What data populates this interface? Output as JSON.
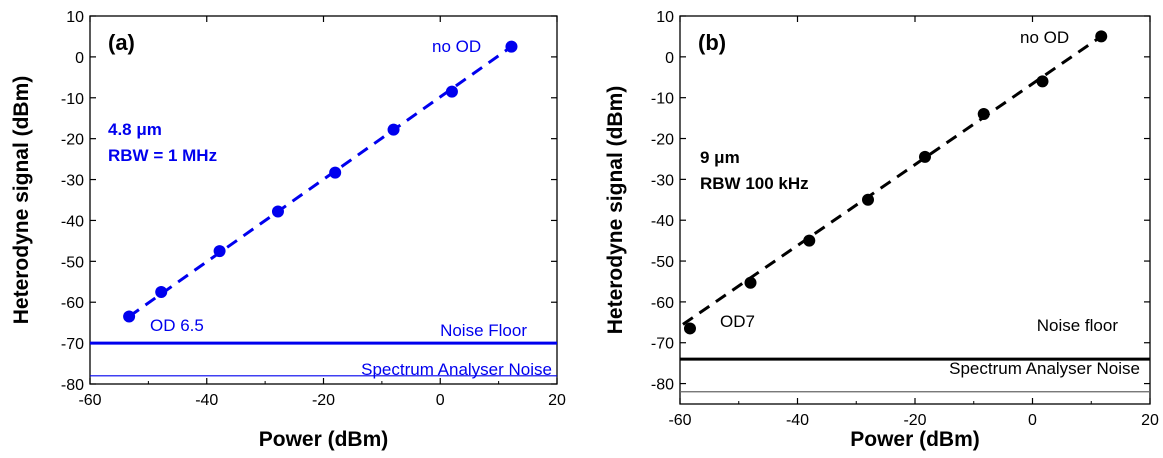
{
  "chart_data": [
    {
      "type": "scatter",
      "panel_label": "(a)",
      "color": "#0000ee",
      "xlabel": "Power (dBm)",
      "ylabel": "Heterodyne signal (dBm)",
      "xlim": [
        -60,
        20
      ],
      "ylim": [
        -80,
        10
      ],
      "xticks": [
        -60,
        -40,
        -20,
        0,
        20
      ],
      "yticks": [
        10,
        0,
        -10,
        -20,
        -30,
        -40,
        -50,
        -60,
        -70,
        -80
      ],
      "series": [
        {
          "x": [
            -53.3,
            -47.8,
            -37.8,
            -27.8,
            -18,
            -8,
            2,
            12.2
          ],
          "y": [
            -63.5,
            -57.5,
            -47.5,
            -37.8,
            -28.3,
            -17.8,
            -8.5,
            2.5
          ]
        }
      ],
      "fit_line": {
        "x": [
          -53.3,
          12.2
        ],
        "y": [
          -63.5,
          2.5
        ]
      },
      "hlines": [
        {
          "y": -70,
          "label": "Noise Floor",
          "weight": "thick"
        },
        {
          "y": -78,
          "label": "Spectrum Analyser Noise",
          "weight": "thin"
        }
      ],
      "annotations": {
        "top": "no OD",
        "bottom": "OD 6.5",
        "line1": "4.8 μm",
        "line2": "RBW = 1 MHz"
      }
    },
    {
      "type": "scatter",
      "panel_label": "(b)",
      "color": "#000000",
      "xlabel": "Power (dBm)",
      "ylabel": "Heterodyne signal (dBm)",
      "xlim": [
        -60,
        20
      ],
      "ylim": [
        -85,
        10
      ],
      "xticks": [
        -60,
        -40,
        -20,
        0,
        20
      ],
      "yticks": [
        10,
        0,
        -10,
        -20,
        -30,
        -40,
        -50,
        -60,
        -70,
        -80
      ],
      "series": [
        {
          "x": [
            -58.3,
            -48,
            -38,
            -28,
            -18.3,
            -8.3,
            1.7,
            11.7
          ],
          "y": [
            -66.5,
            -55.3,
            -45,
            -35,
            -24.5,
            -14,
            -6,
            5
          ]
        }
      ],
      "fit_line": {
        "x": [
          -59.5,
          11.7
        ],
        "y": [
          -65.5,
          5
        ]
      },
      "hlines": [
        {
          "y": -74,
          "label": "Noise floor",
          "weight": "thick"
        },
        {
          "y": -82,
          "label": "Spectrum Analyser Noise",
          "weight": "thin"
        }
      ],
      "annotations": {
        "top": "no OD",
        "bottom": "OD7",
        "line1": "9 μm",
        "line2": "RBW 100 kHz"
      }
    }
  ]
}
